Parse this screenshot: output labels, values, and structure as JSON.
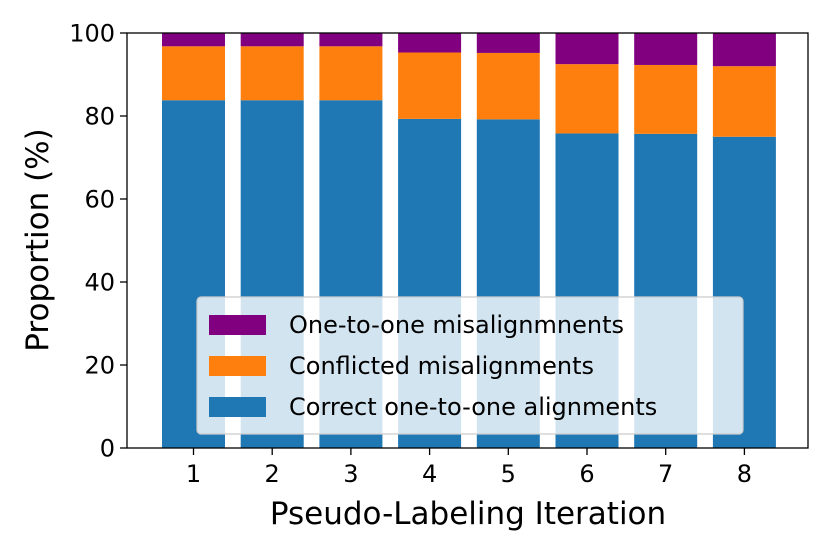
{
  "chart_data": {
    "type": "bar",
    "stacked": true,
    "categories": [
      "1",
      "2",
      "3",
      "4",
      "5",
      "6",
      "7",
      "8"
    ],
    "series": [
      {
        "name": "Correct one-to-one alignments",
        "color": "#1f77b4",
        "values": [
          83.8,
          83.8,
          83.8,
          79.3,
          79.2,
          75.8,
          75.7,
          75.0
        ]
      },
      {
        "name": "Conflicted misalignments",
        "color": "#ff7f0e",
        "values": [
          13.0,
          13.0,
          13.0,
          16.0,
          16.0,
          16.7,
          16.6,
          17.0
        ]
      },
      {
        "name": "One-to-one misalignmnents",
        "color": "#800080",
        "values": [
          3.2,
          3.2,
          3.2,
          4.7,
          4.8,
          7.5,
          7.7,
          8.0
        ]
      }
    ],
    "xlabel": "Pseudo-Labeling Iteration",
    "ylabel": "Proportion (%)",
    "ylim": [
      0,
      100
    ],
    "yticks": [
      "0",
      "20",
      "40",
      "60",
      "80",
      "100"
    ],
    "legend": {
      "position": "lower-center",
      "order": [
        "One-to-one misalignmnents",
        "Conflicted misalignments",
        "Correct one-to-one alignments"
      ]
    },
    "grid": false
  }
}
